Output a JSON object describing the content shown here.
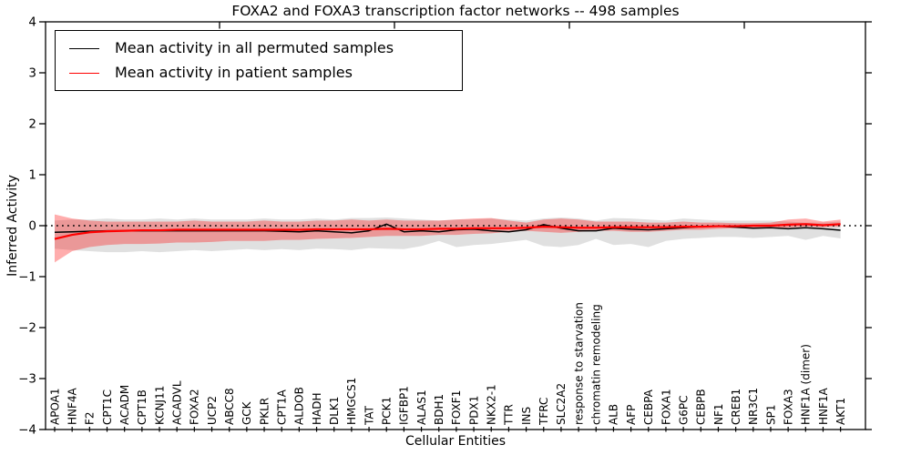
{
  "chart_data": {
    "type": "line",
    "title": "FOXA2 and FOXA3 transcription factor networks -- 498 samples",
    "xlabel": "Cellular Entities",
    "ylabel": "Inferred Activity",
    "ylim": [
      -4,
      4
    ],
    "yticks": [
      -4,
      -3,
      -2,
      -1,
      0,
      1,
      2,
      3,
      4
    ],
    "grid": false,
    "legend_position": "upper left",
    "zero_reference_line": true,
    "categories": [
      "APOA1",
      "HNF4A",
      "F2",
      "CPT1C",
      "ACADM",
      "CPT1B",
      "KCNJ11",
      "ACADVL",
      "FOXA2",
      "UCP2",
      "ABCC8",
      "GCK",
      "PKLR",
      "CPT1A",
      "ALDOB",
      "HADH",
      "DLK1",
      "HMGCS1",
      "TAT",
      "PCK1",
      "IGFBP1",
      "ALAS1",
      "BDH1",
      "FOXF1",
      "PDX1",
      "NKX2-1",
      "TTR",
      "INS",
      "TFRC",
      "SLC2A2",
      "response to starvation",
      "chromatin remodeling",
      "ALB",
      "AFP",
      "CEBPA",
      "FOXA1",
      "G6PC",
      "CEBPB",
      "NF1",
      "CREB1",
      "NR3C1",
      "SP1",
      "FOXA3",
      "HNF1A (dimer)",
      "HNF1A",
      "AKT1"
    ],
    "series": [
      {
        "name": "Mean activity in all permuted samples",
        "color": "#000000",
        "band_fill": "rgba(0,0,0,0.12)",
        "values": [
          -0.13,
          -0.12,
          -0.11,
          -0.1,
          -0.1,
          -0.1,
          -0.1,
          -0.1,
          -0.1,
          -0.1,
          -0.1,
          -0.1,
          -0.1,
          -0.11,
          -0.12,
          -0.1,
          -0.12,
          -0.14,
          -0.1,
          0.03,
          -0.12,
          -0.1,
          -0.12,
          -0.08,
          -0.07,
          -0.1,
          -0.12,
          -0.08,
          0.02,
          -0.05,
          -0.1,
          -0.1,
          -0.05,
          -0.07,
          -0.08,
          -0.06,
          -0.04,
          -0.02,
          -0.01,
          -0.03,
          -0.05,
          -0.04,
          -0.06,
          -0.04,
          -0.06,
          -0.09
        ],
        "band_upper": [
          0.1,
          0.12,
          0.12,
          0.14,
          0.12,
          0.12,
          0.14,
          0.12,
          0.14,
          0.12,
          0.12,
          0.12,
          0.14,
          0.12,
          0.12,
          0.14,
          0.12,
          0.15,
          0.15,
          0.16,
          0.14,
          0.12,
          0.1,
          0.12,
          0.12,
          0.14,
          0.12,
          0.1,
          0.14,
          0.16,
          0.14,
          0.1,
          0.15,
          0.14,
          0.12,
          0.1,
          0.14,
          0.12,
          0.1,
          0.1,
          0.1,
          0.1,
          0.08,
          0.06,
          0.06,
          0.08
        ],
        "band_lower": [
          -0.45,
          -0.48,
          -0.5,
          -0.52,
          -0.52,
          -0.5,
          -0.52,
          -0.5,
          -0.48,
          -0.5,
          -0.48,
          -0.46,
          -0.48,
          -0.46,
          -0.48,
          -0.45,
          -0.46,
          -0.48,
          -0.44,
          -0.45,
          -0.46,
          -0.4,
          -0.3,
          -0.42,
          -0.38,
          -0.36,
          -0.32,
          -0.28,
          -0.4,
          -0.42,
          -0.38,
          -0.26,
          -0.38,
          -0.36,
          -0.42,
          -0.3,
          -0.26,
          -0.24,
          -0.22,
          -0.22,
          -0.24,
          -0.22,
          -0.2,
          -0.28,
          -0.2,
          -0.25
        ]
      },
      {
        "name": "Mean activity in patient samples",
        "color": "#ff0000",
        "band_fill": "rgba(255,0,0,0.32)",
        "values": [
          -0.26,
          -0.18,
          -0.13,
          -0.11,
          -0.1,
          -0.09,
          -0.09,
          -0.08,
          -0.08,
          -0.08,
          -0.08,
          -0.08,
          -0.08,
          -0.08,
          -0.08,
          -0.07,
          -0.07,
          -0.07,
          -0.07,
          -0.06,
          -0.07,
          -0.07,
          -0.06,
          -0.06,
          -0.05,
          -0.05,
          -0.05,
          -0.04,
          -0.02,
          -0.03,
          -0.04,
          -0.04,
          -0.03,
          -0.03,
          -0.03,
          -0.03,
          -0.02,
          -0.02,
          -0.01,
          -0.01,
          0.0,
          0.0,
          0.02,
          0.03,
          0.01,
          0.03
        ],
        "band_upper": [
          0.22,
          0.14,
          0.1,
          0.08,
          0.08,
          0.08,
          0.08,
          0.08,
          0.1,
          0.08,
          0.08,
          0.08,
          0.1,
          0.08,
          0.08,
          0.1,
          0.1,
          0.12,
          0.1,
          0.12,
          0.1,
          0.1,
          0.1,
          0.12,
          0.14,
          0.15,
          0.1,
          0.06,
          0.12,
          0.14,
          0.12,
          0.08,
          0.08,
          0.08,
          0.06,
          0.06,
          0.08,
          0.06,
          0.06,
          0.05,
          0.05,
          0.06,
          0.12,
          0.14,
          0.08,
          0.12
        ],
        "band_lower": [
          -0.72,
          -0.5,
          -0.42,
          -0.38,
          -0.36,
          -0.36,
          -0.35,
          -0.33,
          -0.33,
          -0.32,
          -0.3,
          -0.3,
          -0.3,
          -0.28,
          -0.28,
          -0.26,
          -0.25,
          -0.24,
          -0.22,
          -0.2,
          -0.2,
          -0.2,
          -0.18,
          -0.18,
          -0.16,
          -0.15,
          -0.12,
          -0.1,
          -0.12,
          -0.14,
          -0.12,
          -0.1,
          -0.1,
          -0.12,
          -0.12,
          -0.1,
          -0.08,
          -0.08,
          -0.06,
          -0.05,
          -0.06,
          -0.05,
          -0.04,
          -0.02,
          -0.03,
          -0.02
        ]
      }
    ]
  },
  "legend": {
    "entries": [
      {
        "label": "Mean activity in all permuted samples",
        "color": "#000000"
      },
      {
        "label": "Mean activity in patient samples",
        "color": "#ff0000"
      }
    ]
  }
}
